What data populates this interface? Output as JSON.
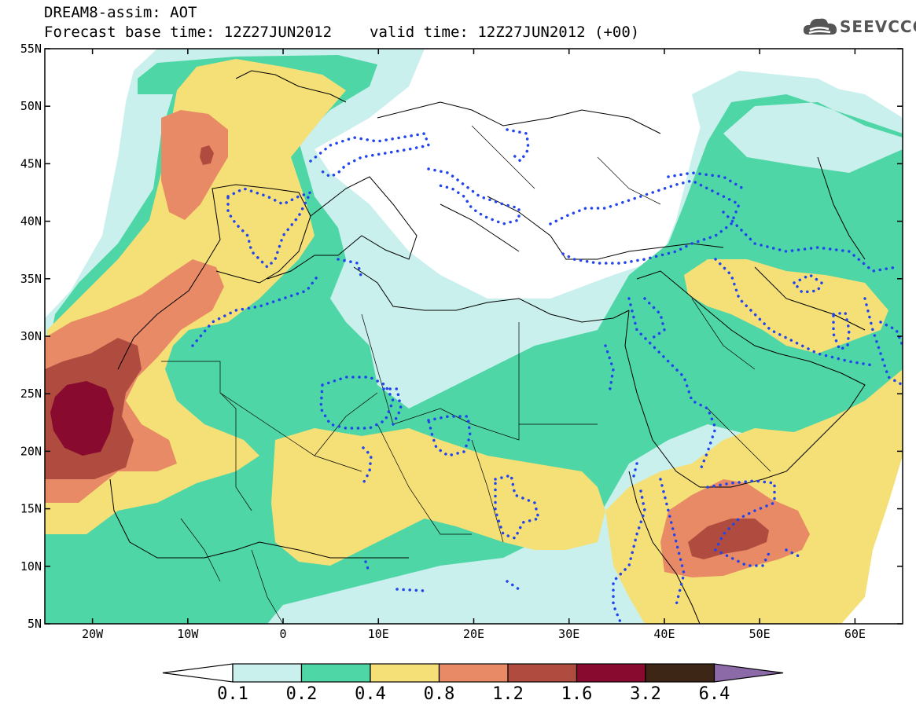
{
  "title": {
    "line1": "DREAM8-assim: AOT",
    "base_time": "Forecast base time: 12Z27JUN2012",
    "valid_time": "valid time: 12Z27JUN2012 (+00)"
  },
  "logo": {
    "icon": "cloud-icon",
    "text": "SEEVCCC"
  },
  "map": {
    "lon_range": [
      -25,
      65
    ],
    "lat_range": [
      5,
      55
    ],
    "lat_labels": [
      "55N",
      "50N",
      "45N",
      "40N",
      "35N",
      "30N",
      "25N",
      "20N",
      "15N",
      "10N",
      "5N"
    ],
    "lon_labels": [
      "20W",
      "10W",
      "0",
      "10E",
      "20E",
      "30E",
      "40E",
      "50E",
      "60E"
    ]
  },
  "colorbar": {
    "labels": [
      "0.1",
      "0.2",
      "0.4",
      "0.8",
      "1.2",
      "1.6",
      "3.2",
      "6.4"
    ],
    "colors": [
      "#ffffff",
      "#c9f0ec",
      "#4fd6a6",
      "#f5e077",
      "#e98a66",
      "#b04c3f",
      "#880a2f",
      "#3d2615",
      "#8c6aa8"
    ]
  },
  "legend_colors": {
    "outline": "#000000",
    "dotted_contour": "#2244ee"
  }
}
